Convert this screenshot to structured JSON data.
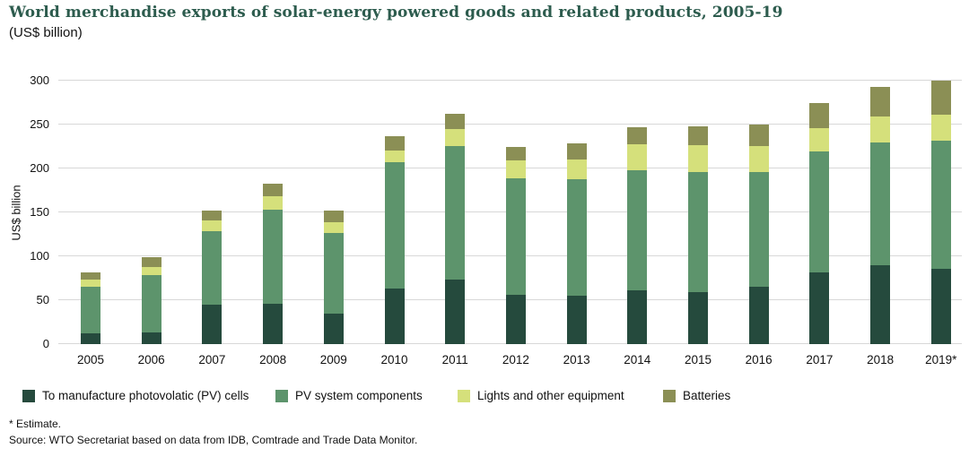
{
  "title": "World merchandise exports of solar-energy powered goods and related products, 2005-19",
  "subtitle": "(US$ billion)",
  "footnotes": {
    "estimate": "* Estimate.",
    "source": "Source: WTO Secretariat based on data from IDB, Comtrade and Trade Data Monitor."
  },
  "colors": {
    "title": "#2d5c4e",
    "gridline": "#d8d8d8",
    "pv_cells": "#254a3d",
    "pv_system_components": "#5d946c",
    "lights": "#d5e07b",
    "batteries": "#8b8f55"
  },
  "chart_data": {
    "type": "bar",
    "stacked": true,
    "title": "World merchandise exports of solar-energy powered goods and related products, 2005-19",
    "subtitle": "(US$ billion)",
    "ylabel": "US$ billion",
    "xlabel": "",
    "ylim": [
      0,
      300
    ],
    "yticks": [
      0,
      50,
      100,
      150,
      200,
      250,
      300
    ],
    "grid": true,
    "legend_position": "bottom",
    "categories": [
      "2005",
      "2006",
      "2007",
      "2008",
      "2009",
      "2010",
      "2011",
      "2012",
      "2013",
      "2014",
      "2015",
      "2016",
      "2017",
      "2018",
      "2019*"
    ],
    "series": [
      {
        "name": "To manufacture photovolatic (PV) cells",
        "color": "#254a3d",
        "values": [
          12,
          13,
          45,
          46,
          35,
          63,
          73,
          56,
          55,
          61,
          59,
          65,
          82,
          90,
          86
        ]
      },
      {
        "name": "PV system components",
        "color": "#5d946c",
        "values": [
          53,
          66,
          84,
          107,
          92,
          144,
          153,
          133,
          133,
          137,
          137,
          131,
          137,
          140,
          146
        ]
      },
      {
        "name": "Lights and other equipment",
        "color": "#d5e07b",
        "values": [
          9,
          9,
          12,
          15,
          12,
          13,
          19,
          20,
          22,
          30,
          31,
          30,
          27,
          29,
          29
        ]
      },
      {
        "name": "Batteries",
        "color": "#8b8f55",
        "values": [
          8,
          11,
          11,
          15,
          13,
          17,
          17,
          16,
          19,
          19,
          21,
          24,
          29,
          34,
          39
        ]
      }
    ],
    "totals": [
      82,
      99,
      152,
      183,
      152,
      237,
      262,
      225,
      229,
      247,
      248,
      250,
      275,
      293,
      300
    ]
  }
}
